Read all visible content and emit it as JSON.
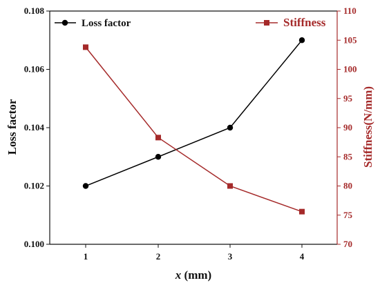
{
  "chart_data": {
    "type": "line",
    "x": [
      1,
      2,
      3,
      4
    ],
    "xlabel_var": "x",
    "xlabel_unit": " (mm)",
    "y_left_label": "Loss factor",
    "y_right_label": "Stiffness(N/mm)",
    "y_left_lim": [
      0.1,
      0.108
    ],
    "y_right_lim": [
      70,
      110
    ],
    "y_left_ticks": [
      0.1,
      0.102,
      0.104,
      0.106,
      0.108
    ],
    "y_left_tick_labels": [
      "0.100",
      "0.102",
      "0.104",
      "0.106",
      "0.108"
    ],
    "y_right_ticks": [
      70,
      75,
      80,
      85,
      90,
      95,
      100,
      105,
      110
    ],
    "x_ticks": [
      1,
      2,
      3,
      4
    ],
    "grid": false,
    "legend_placement": "top",
    "series": [
      {
        "name": "Loss factor",
        "axis": "left",
        "color": "#000000",
        "marker": "circle",
        "values": [
          0.102,
          0.103,
          0.104,
          0.107
        ]
      },
      {
        "name": "Stiffness",
        "axis": "right",
        "color": "#a52a2a",
        "marker": "square",
        "values": [
          103.8,
          88.3,
          80.0,
          75.6
        ]
      }
    ]
  }
}
